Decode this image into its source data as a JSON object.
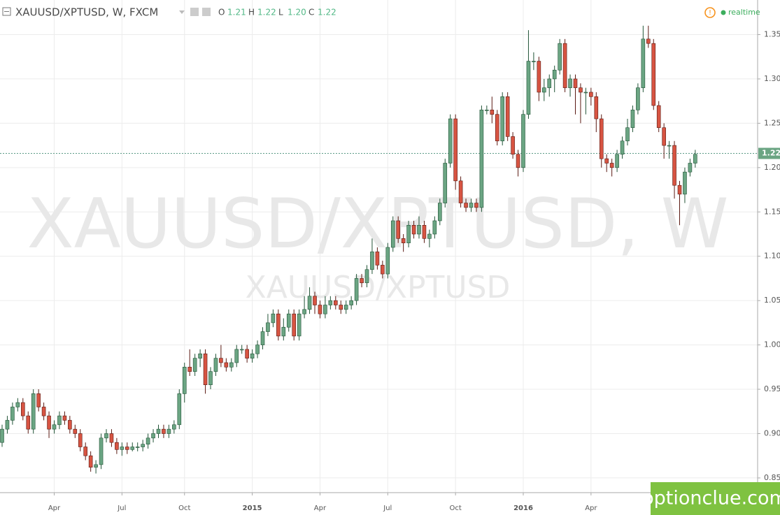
{
  "chart_data": {
    "type": "candlestick",
    "header": {
      "symbol": "XAUUSD/XPTUSD, W, FXCM",
      "ohlc": [
        {
          "key": "O",
          "value": "1.21"
        },
        {
          "key": "H",
          "value": "1.22"
        },
        {
          "key": "L",
          "value": "1.20"
        },
        {
          "key": "C",
          "value": "1.22"
        }
      ],
      "status": "realtime"
    },
    "watermark": "XAUUSD/XPTUSD, W",
    "watermark_sub": "XAUUSD/XPTUSD",
    "categories": [
      null,
      null,
      null,
      null,
      null,
      null,
      null,
      null,
      null,
      null,
      "Apr",
      null,
      null,
      null,
      null,
      null,
      null,
      null,
      null,
      null,
      null,
      null,
      null,
      "Jul",
      null,
      null,
      null,
      null,
      null,
      null,
      null,
      null,
      null,
      null,
      null,
      "Oct",
      null,
      null,
      null,
      null,
      null,
      null,
      null,
      null,
      null,
      null,
      null,
      null,
      "2015",
      null,
      null,
      null,
      null,
      null,
      null,
      null,
      null,
      null,
      null,
      null,
      null,
      "Apr",
      null,
      null,
      null,
      null,
      null,
      null,
      null,
      null,
      null,
      null,
      null,
      null,
      "Jul",
      null,
      null,
      null,
      null,
      null,
      null,
      null,
      null,
      null,
      null,
      null,
      null,
      "Oct",
      null,
      null,
      null,
      null,
      null,
      null,
      null,
      null,
      null,
      null,
      null,
      null,
      "2016",
      null,
      null,
      null,
      null,
      null,
      null,
      null,
      null,
      null,
      null,
      null,
      null,
      "Apr",
      null,
      null,
      null,
      null,
      null,
      null,
      null,
      null,
      null,
      null,
      null,
      null,
      null,
      null,
      null,
      null,
      null,
      null,
      null,
      null
    ],
    "open": [
      0.89,
      0.905,
      0.915,
      0.93,
      0.935,
      0.92,
      0.905,
      0.945,
      0.93,
      0.92,
      0.905,
      0.91,
      0.92,
      0.915,
      0.905,
      0.9,
      0.885,
      0.875,
      0.862,
      0.865,
      0.895,
      0.9,
      0.89,
      0.882,
      0.885,
      0.882,
      0.885,
      0.885,
      0.888,
      0.895,
      0.9,
      0.905,
      0.9,
      0.905,
      0.91,
      0.945,
      0.975,
      0.97,
      0.985,
      0.99,
      0.955,
      0.97,
      0.985,
      0.98,
      0.975,
      0.98,
      0.995,
      0.995,
      0.985,
      0.99,
      1.0,
      1.015,
      1.025,
      1.035,
      1.01,
      1.02,
      1.035,
      1.01,
      1.035,
      1.04,
      1.055,
      1.045,
      1.035,
      1.045,
      1.05,
      1.045,
      1.04,
      1.045,
      1.05,
      1.075,
      1.07,
      1.085,
      1.105,
      1.09,
      1.08,
      1.11,
      1.14,
      1.12,
      1.115,
      1.135,
      1.125,
      1.135,
      1.12,
      1.125,
      1.14,
      1.16,
      1.205,
      1.255,
      1.185,
      1.16,
      1.155,
      1.16,
      1.155,
      1.265,
      1.265,
      1.26,
      1.23,
      1.28,
      1.235,
      1.215,
      1.2,
      1.26,
      1.32,
      1.32,
      1.285,
      1.29,
      1.3,
      1.31,
      1.34,
      1.29,
      1.3,
      1.29,
      1.285,
      1.285,
      1.28,
      1.255,
      1.21,
      1.205,
      1.2,
      1.215,
      1.23,
      1.245,
      1.265,
      1.29,
      1.345,
      1.34,
      1.27,
      1.245,
      1.225,
      1.225,
      1.18,
      1.17,
      1.195,
      1.205
    ],
    "high": [
      0.91,
      0.92,
      0.935,
      0.94,
      0.94,
      0.925,
      0.95,
      0.95,
      0.935,
      0.925,
      0.915,
      0.925,
      0.925,
      0.92,
      0.91,
      0.905,
      0.89,
      0.88,
      0.87,
      0.9,
      0.905,
      0.905,
      0.895,
      0.89,
      0.89,
      0.89,
      0.89,
      0.893,
      0.9,
      0.905,
      0.91,
      0.91,
      0.91,
      0.915,
      0.95,
      0.98,
      0.995,
      0.99,
      0.995,
      0.995,
      0.975,
      0.99,
      1.0,
      0.985,
      0.985,
      1.0,
      1.0,
      1.0,
      0.995,
      1.005,
      1.02,
      1.035,
      1.04,
      1.04,
      1.03,
      1.04,
      1.04,
      1.04,
      1.055,
      1.065,
      1.06,
      1.05,
      1.055,
      1.055,
      1.055,
      1.05,
      1.05,
      1.055,
      1.08,
      1.08,
      1.09,
      1.12,
      1.11,
      1.095,
      1.115,
      1.145,
      1.145,
      1.125,
      1.14,
      1.14,
      1.145,
      1.14,
      1.13,
      1.145,
      1.165,
      1.21,
      1.26,
      1.26,
      1.19,
      1.165,
      1.165,
      1.165,
      1.27,
      1.27,
      1.28,
      1.265,
      1.285,
      1.285,
      1.24,
      1.22,
      1.265,
      1.355,
      1.33,
      1.325,
      1.3,
      1.305,
      1.315,
      1.345,
      1.345,
      1.305,
      1.305,
      1.295,
      1.29,
      1.29,
      1.285,
      1.26,
      1.215,
      1.21,
      1.22,
      1.235,
      1.255,
      1.27,
      1.295,
      1.36,
      1.36,
      1.345,
      1.275,
      1.25,
      1.23,
      1.23,
      1.185,
      1.2,
      1.21,
      1.22
    ],
    "low": [
      0.885,
      0.9,
      0.91,
      0.925,
      0.915,
      0.9,
      0.9,
      0.925,
      0.915,
      0.895,
      0.9,
      0.905,
      0.91,
      0.9,
      0.895,
      0.88,
      0.87,
      0.857,
      0.855,
      0.86,
      0.89,
      0.885,
      0.877,
      0.875,
      0.877,
      0.88,
      0.88,
      0.88,
      0.883,
      0.89,
      0.895,
      0.895,
      0.895,
      0.9,
      0.905,
      0.935,
      0.965,
      0.965,
      0.975,
      0.945,
      0.95,
      0.965,
      0.975,
      0.97,
      0.97,
      0.975,
      0.99,
      0.98,
      0.98,
      0.985,
      0.995,
      1.01,
      1.02,
      1.005,
      1.005,
      1.015,
      1.005,
      1.005,
      1.03,
      1.035,
      1.035,
      1.03,
      1.03,
      1.04,
      1.04,
      1.035,
      1.035,
      1.04,
      1.045,
      1.065,
      1.065,
      1.08,
      1.085,
      1.075,
      1.075,
      1.105,
      1.115,
      1.105,
      1.11,
      1.12,
      1.12,
      1.115,
      1.11,
      1.12,
      1.135,
      1.155,
      1.2,
      1.175,
      1.155,
      1.15,
      1.15,
      1.15,
      1.15,
      1.26,
      1.25,
      1.225,
      1.225,
      1.23,
      1.21,
      1.19,
      1.195,
      1.255,
      1.31,
      1.275,
      1.275,
      1.28,
      1.285,
      1.305,
      1.285,
      1.28,
      1.26,
      1.25,
      1.26,
      1.27,
      1.24,
      1.2,
      1.195,
      1.19,
      1.195,
      1.21,
      1.225,
      1.24,
      1.26,
      1.285,
      1.335,
      1.265,
      1.24,
      1.21,
      1.21,
      1.165,
      1.135,
      1.16,
      1.19,
      1.2
    ],
    "close": [
      0.905,
      0.915,
      0.93,
      0.935,
      0.92,
      0.905,
      0.945,
      0.93,
      0.92,
      0.905,
      0.91,
      0.92,
      0.915,
      0.905,
      0.9,
      0.885,
      0.875,
      0.862,
      0.865,
      0.895,
      0.9,
      0.89,
      0.882,
      0.885,
      0.882,
      0.885,
      0.885,
      0.888,
      0.895,
      0.9,
      0.905,
      0.9,
      0.905,
      0.91,
      0.945,
      0.975,
      0.97,
      0.985,
      0.99,
      0.955,
      0.97,
      0.985,
      0.98,
      0.975,
      0.98,
      0.995,
      0.995,
      0.985,
      0.99,
      1.0,
      1.015,
      1.025,
      1.035,
      1.01,
      1.02,
      1.035,
      1.01,
      1.035,
      1.04,
      1.055,
      1.045,
      1.035,
      1.045,
      1.05,
      1.045,
      1.04,
      1.045,
      1.05,
      1.075,
      1.07,
      1.085,
      1.105,
      1.09,
      1.08,
      1.11,
      1.14,
      1.12,
      1.115,
      1.135,
      1.125,
      1.135,
      1.12,
      1.125,
      1.14,
      1.16,
      1.205,
      1.255,
      1.185,
      1.16,
      1.155,
      1.16,
      1.155,
      1.265,
      1.265,
      1.26,
      1.23,
      1.28,
      1.235,
      1.215,
      1.2,
      1.26,
      1.32,
      1.32,
      1.285,
      1.29,
      1.3,
      1.31,
      1.34,
      1.29,
      1.3,
      1.29,
      1.285,
      1.285,
      1.28,
      1.255,
      1.21,
      1.205,
      1.2,
      1.215,
      1.23,
      1.245,
      1.265,
      1.29,
      1.345,
      1.34,
      1.27,
      1.245,
      1.225,
      1.225,
      1.18,
      1.17,
      1.195,
      1.205,
      1.215
    ],
    "up_color": "#6ba583",
    "down_color": "#d75442",
    "ylim": [
      0.8334,
      1.389
    ],
    "yticks": [
      0.85,
      {
        "value": 0.9,
        "label": "0.90"
      },
      0.95,
      {
        "value": 1.0,
        "label": "1.00"
      },
      1.05,
      {
        "value": 1.1,
        "label": "1.10"
      },
      1.15,
      {
        "value": 1.2,
        "label": "1.20"
      },
      1.25,
      {
        "value": 1.3,
        "label": "1.30"
      },
      1.35
    ],
    "last_price": {
      "value": 1.216,
      "label": "1.22"
    },
    "grid": true,
    "brand": "optionclue.com"
  }
}
